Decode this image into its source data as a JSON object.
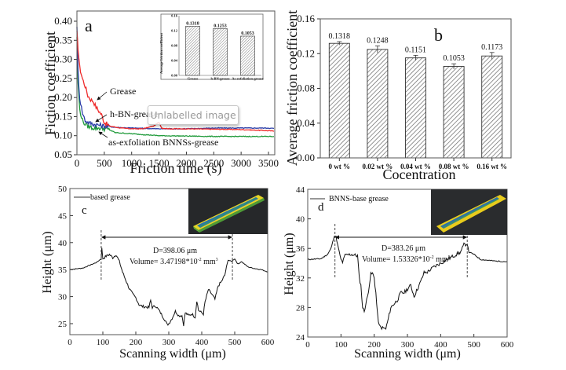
{
  "tooltip": "Unlabelled image",
  "chart_data": [
    {
      "id": "a",
      "type": "line",
      "panel_label": "a",
      "title": "",
      "xlabel": "Friction time (s)",
      "ylabel": "Fiction coefficient",
      "xlim": [
        0,
        3600
      ],
      "ylim": [
        0.05,
        0.42
      ],
      "xticks": [
        0,
        500,
        1000,
        1500,
        2000,
        2500,
        3000,
        3500
      ],
      "yticks": [
        0.05,
        0.1,
        0.15,
        0.2,
        0.25,
        0.3,
        0.35,
        0.4
      ],
      "series": [
        {
          "name": "Grease",
          "color": "#ee2a2a",
          "x": [
            0,
            20,
            50,
            100,
            150,
            200,
            250,
            300,
            350,
            400,
            450,
            500,
            600,
            800,
            1000,
            1200,
            1400,
            1500,
            1550,
            1700,
            2000,
            2500,
            3000,
            3500,
            3600
          ],
          "y": [
            0.37,
            0.33,
            0.28,
            0.25,
            0.23,
            0.205,
            0.195,
            0.19,
            0.175,
            0.165,
            0.155,
            0.135,
            0.125,
            0.12,
            0.118,
            0.118,
            0.125,
            0.135,
            0.12,
            0.118,
            0.118,
            0.117,
            0.116,
            0.113,
            0.112
          ]
        },
        {
          "name": "h-BN-grease",
          "color": "#2b3ea8",
          "x": [
            0,
            20,
            50,
            100,
            150,
            200,
            300,
            400,
            500,
            700,
            1000,
            1500,
            2000,
            2500,
            3000,
            3500,
            3600
          ],
          "y": [
            0.39,
            0.27,
            0.2,
            0.16,
            0.14,
            0.135,
            0.13,
            0.128,
            0.125,
            0.122,
            0.12,
            0.118,
            0.118,
            0.12,
            0.12,
            0.12,
            0.119
          ]
        },
        {
          "name": "as-exfoliation BNNSs-grease",
          "color": "#1f9a3a",
          "x": [
            0,
            20,
            50,
            100,
            150,
            200,
            300,
            400,
            500,
            600,
            700,
            1000,
            1500,
            2000,
            2500,
            3000,
            3500,
            3600
          ],
          "y": [
            0.36,
            0.24,
            0.17,
            0.14,
            0.13,
            0.125,
            0.12,
            0.12,
            0.118,
            0.115,
            0.108,
            0.105,
            0.1,
            0.099,
            0.098,
            0.098,
            0.098,
            0.098
          ]
        }
      ],
      "annotations": [
        "Grease",
        "h-BN-grease",
        "as-exfoliation BNNSs-grease"
      ],
      "inset": {
        "type": "bar",
        "ylabel": "Average friction coefficient",
        "ylim": [
          0,
          0.16
        ],
        "yticks": [
          "0.00",
          "0.04",
          "0.08",
          "0.12",
          "0.16"
        ],
        "categories": [
          "Grease",
          "h-BN-grease",
          "As-exfoliation-grease"
        ],
        "values": [
          0.1318,
          0.1253,
          0.1053
        ],
        "labels": [
          "0.1318",
          "0.1253",
          "0.1053"
        ]
      }
    },
    {
      "id": "b",
      "type": "bar",
      "panel_label": "b",
      "title": "",
      "xlabel": "Cocentration",
      "ylabel": "Average friction coefficient",
      "ylim": [
        0,
        0.16
      ],
      "yticks": [
        "0.00",
        "0.04",
        "0.08",
        "0.12",
        "0.16"
      ],
      "categories": [
        "0 wt  %",
        "0.02 wt  %",
        "0.04 wt  %",
        "0.08 wt  %",
        "0.16 wt  %"
      ],
      "values": [
        0.1318,
        0.1248,
        0.1151,
        0.1053,
        0.1173
      ],
      "errors": [
        0.002,
        0.004,
        0.003,
        0.003,
        0.004
      ],
      "labels": [
        "0.1318",
        "0.1248",
        "0.1151",
        "0.1053",
        "0.1173"
      ]
    },
    {
      "id": "c",
      "type": "line",
      "panel_label": "c",
      "xlabel": "Scanning width (μm)",
      "ylabel": "Height (μm)",
      "xlim": [
        0,
        600
      ],
      "ylim": [
        23,
        50
      ],
      "xticks": [
        0,
        100,
        200,
        300,
        400,
        500,
        600
      ],
      "yticks": [
        25,
        30,
        35,
        40,
        45,
        50
      ],
      "legend": "based grease",
      "legend_position": "top-left",
      "series": [
        {
          "name": "based grease",
          "color": "#111111",
          "x": [
            0,
            40,
            60,
            80,
            95,
            97,
            100,
            110,
            120,
            130,
            140,
            150,
            160,
            170,
            180,
            190,
            200,
            210,
            220,
            240,
            245,
            250,
            260,
            270,
            280,
            290,
            295,
            300,
            310,
            320,
            330,
            340,
            345,
            350,
            360,
            370,
            380,
            385,
            390,
            400,
            405,
            410,
            420,
            430,
            440,
            450,
            460,
            470,
            480,
            490,
            500,
            510,
            520,
            540,
            560,
            580,
            600
          ],
          "y": [
            35,
            35.3,
            35.8,
            36.3,
            37,
            39,
            37,
            37.5,
            37.8,
            37.2,
            37.8,
            36.5,
            34.5,
            33,
            31.5,
            30.5,
            29.8,
            28.5,
            28.2,
            28,
            29.3,
            28,
            28.3,
            27.5,
            26.5,
            25.5,
            24.8,
            25,
            26,
            27.3,
            26.5,
            26.5,
            24.8,
            27,
            26.5,
            26.8,
            26.2,
            29.3,
            27.5,
            27,
            26.8,
            29,
            31.3,
            30.5,
            29.5,
            32,
            32.8,
            34,
            36.8,
            36.5,
            37,
            36,
            36.5,
            35.5,
            35.2,
            35,
            34.6
          ]
        }
      ],
      "annotations": {
        "D": "D=398.06 μm",
        "volume": "Volume= 3.47198*10",
        "volume_exp": "-2",
        "volume_unit": " mm",
        "volume_unit_exp": "3"
      },
      "markers_x": [
        95,
        493
      ]
    },
    {
      "id": "d",
      "type": "line",
      "panel_label": "d",
      "xlabel": "Scanning width (μm)",
      "ylabel": "Height (μm)",
      "xlim": [
        0,
        600
      ],
      "ylim": [
        24,
        45
      ],
      "xticks": [
        0,
        100,
        200,
        300,
        400,
        500,
        600
      ],
      "yticks": [
        24,
        28,
        32,
        36,
        40,
        44
      ],
      "legend": "BNNS-base grease",
      "legend_position": "top-left",
      "series": [
        {
          "name": "BNNS-base grease",
          "color": "#111111",
          "x": [
            0,
            40,
            60,
            70,
            80,
            85,
            90,
            95,
            100,
            105,
            110,
            130,
            150,
            155,
            160,
            165,
            170,
            175,
            180,
            190,
            195,
            200,
            205,
            210,
            215,
            220,
            235,
            240,
            250,
            260,
            270,
            280,
            290,
            300,
            310,
            320,
            330,
            340,
            350,
            360,
            380,
            400,
            420,
            440,
            460,
            470,
            480,
            485,
            500,
            520,
            560,
            600
          ],
          "y": [
            34.5,
            34.6,
            35.2,
            36,
            37.7,
            37.6,
            36.5,
            35.5,
            34.5,
            34,
            35,
            35.2,
            35,
            32,
            31,
            28,
            27.5,
            28.5,
            29.5,
            32.5,
            32.6,
            32,
            30,
            27,
            25.5,
            25.3,
            25.1,
            26,
            28,
            28.5,
            29,
            30,
            30,
            30.5,
            31,
            29.5,
            30.5,
            31.5,
            32.7,
            32.8,
            33.5,
            34,
            34.5,
            35,
            35.5,
            36.5,
            36.6,
            35.5,
            35.2,
            34.5,
            34.3,
            34.2
          ]
        }
      ],
      "annotations": {
        "D": "D=383.26 μm",
        "volume": "Volume= 1.53326*10",
        "volume_exp": "-2",
        "volume_unit": " mm",
        "volume_unit_exp": "3"
      },
      "markers_x": [
        82,
        480
      ]
    }
  ]
}
